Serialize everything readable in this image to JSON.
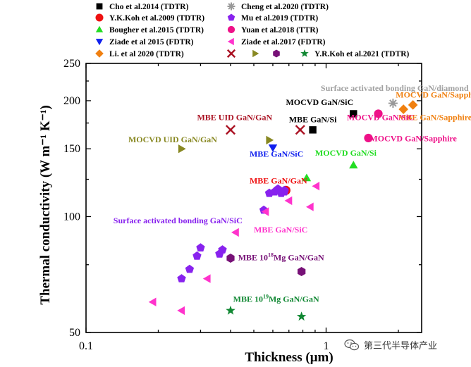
{
  "chart_data": {
    "type": "scatter",
    "xlabel": "Thickness (μm)",
    "ylabel": "Thermal conductivity (W m⁻¹ K⁻¹)",
    "xscale": "log",
    "yscale": "log",
    "xlim": [
      0.1,
      2.5
    ],
    "ylim": [
      50,
      250
    ],
    "x_ticks": [
      0.1,
      1
    ],
    "x_tick_labels": [
      "0.1",
      "1"
    ],
    "y_ticks": [
      50,
      100,
      150,
      200,
      250
    ],
    "y_tick_labels": [
      "50",
      "100",
      "150",
      "200",
      "250"
    ],
    "grid": false,
    "legend_position": "top",
    "legend": [
      {
        "label": "Cho et al.2014 (TDTR)",
        "marker": "square",
        "color": "#000000"
      },
      {
        "label": "Y.K.Koh et al.2009 (TDTR)",
        "marker": "circle",
        "color": "#ee1111"
      },
      {
        "label": "Bougher et al.2015 (TDTR)",
        "marker": "triangle-up",
        "color": "#22dd22"
      },
      {
        "label": "Ziade et al 2015 (FDTR)",
        "marker": "triangle-down",
        "color": "#1020ee"
      },
      {
        "label": "Li. et al 2020 (TDTR)",
        "marker": "diamond",
        "color": "#f08010"
      },
      {
        "label": "Cheng et al.2020 (TDTR)",
        "marker": "asterisk",
        "color": "#999999"
      },
      {
        "label": "Mu et al.2019 (TDTR)",
        "marker": "pentagon",
        "color": "#8822ee"
      },
      {
        "label": "Yuan et al.2018 (TTR)",
        "marker": "ball",
        "color": "#ee1188"
      },
      {
        "label": "Ziade et al.2017 (FDTR)",
        "marker": "triangle-left",
        "color": "#ff33cc"
      },
      {
        "label": "",
        "marker": "x",
        "color": "#aa1122"
      },
      {
        "label": "",
        "marker": "triangle-right",
        "color": "#888822"
      },
      {
        "label": "",
        "marker": "hexagon",
        "color": "#771177"
      },
      {
        "label": "Y.R.Koh et al.2021 (TDTR)",
        "marker": "star",
        "color": "#118833"
      }
    ],
    "series": [
      {
        "name": "Cho et al.2014 (TDTR)",
        "marker": "square",
        "color": "#000000",
        "x": [
          1.3,
          0.88
        ],
        "y": [
          185,
          168
        ]
      },
      {
        "name": "Y.K.Koh et al.2009 (TDTR)",
        "marker": "circle",
        "color": "#ee1111",
        "x": [
          0.68
        ],
        "y": [
          117
        ]
      },
      {
        "name": "Bougher et al.2015 (TDTR)",
        "marker": "triangle-up",
        "color": "#22dd22",
        "x": [
          0.83,
          1.3
        ],
        "y": [
          126,
          136
        ]
      },
      {
        "name": "Ziade et al 2015 (FDTR)",
        "marker": "triangle-down",
        "color": "#1020ee",
        "x": [
          0.6
        ],
        "y": [
          151
        ]
      },
      {
        "name": "Li. et al 2020 (TDTR)",
        "marker": "diamond",
        "color": "#f08010",
        "x": [
          2.1,
          2.3
        ],
        "y": [
          190,
          195
        ]
      },
      {
        "name": "Cheng et al.2020 (TDTR)",
        "marker": "asterisk",
        "color": "#999999",
        "x": [
          1.9
        ],
        "y": [
          197
        ]
      },
      {
        "name": "Mu et al.2019 (TDTR)",
        "marker": "pentagon",
        "color": "#8822ee",
        "x": [
          0.25,
          0.27,
          0.29,
          0.3,
          0.36,
          0.37,
          0.55,
          0.58,
          0.61,
          0.63,
          0.65,
          0.67,
          0.67
        ],
        "y": [
          69,
          73,
          79,
          83,
          80,
          82,
          104,
          115,
          116,
          118,
          115,
          117,
          116
        ]
      },
      {
        "name": "Yuan et al.2018 (TTR)",
        "marker": "ball",
        "color": "#ee1188",
        "x": [
          1.65,
          1.5
        ],
        "y": [
          185,
          160
        ]
      },
      {
        "name": "Ziade et al.2017 (FDTR)",
        "marker": "triangle-left",
        "color": "#ff33cc",
        "x": [
          0.19,
          0.25,
          0.32,
          0.42,
          0.56,
          0.7,
          0.86,
          0.91
        ],
        "y": [
          60,
          57,
          69,
          91,
          103,
          110,
          106,
          120
        ]
      },
      {
        "name": "",
        "marker": "x",
        "color": "#aa1122",
        "x": [
          0.4,
          0.78
        ],
        "y": [
          168,
          168
        ]
      },
      {
        "name": "",
        "marker": "triangle-right",
        "color": "#888822",
        "x": [
          0.25,
          0.58
        ],
        "y": [
          150,
          158
        ]
      },
      {
        "name": "",
        "marker": "hexagon",
        "color": "#771177",
        "x": [
          0.4,
          0.79
        ],
        "y": [
          78,
          72
        ]
      },
      {
        "name": "Y.R.Koh et al.2021 (TDTR)",
        "marker": "star",
        "color": "#118833",
        "x": [
          0.4,
          0.79
        ],
        "y": [
          57,
          55
        ]
      }
    ],
    "annotations": [
      {
        "text": "Surface activated bonding GaN/diamond",
        "color": "#a0a0a0",
        "x": 0.95,
        "y": 212
      },
      {
        "text": "MOCVD GaN/SiC",
        "color": "#000000",
        "x": 0.68,
        "y": 195
      },
      {
        "text": "MOCVD GaN/Sapphire",
        "color": "#f08010",
        "x": 1.95,
        "y": 204
      },
      {
        "text": "MBE GaN/Sapphire",
        "color": "#f08010",
        "x": 2.0,
        "y": 178
      },
      {
        "text": "MBE UID GaN/GaN",
        "color": "#aa1122",
        "x": 0.29,
        "y": 178
      },
      {
        "text": "MBE GaN/Si",
        "color": "#000000",
        "x": 0.7,
        "y": 176
      },
      {
        "text": "MOCVD GaN/SiC",
        "color": "#ee1188",
        "x": 1.22,
        "y": 178
      },
      {
        "text": "MOCVD UID GaN/GaN",
        "color": "#888822",
        "x": 0.15,
        "y": 156
      },
      {
        "text": "MOCVD GaN/Sapphire",
        "color": "#ee1188",
        "x": 1.52,
        "y": 157
      },
      {
        "text": "MBE GaN/SiC",
        "color": "#1020ee",
        "x": 0.48,
        "y": 143
      },
      {
        "text": "MOCVD GaN/Si",
        "color": "#22dd22",
        "x": 0.9,
        "y": 144
      },
      {
        "text": "MBE GaN/GaN",
        "color": "#ee1111",
        "x": 0.48,
        "y": 122
      },
      {
        "text": "Surface activated bonding GaN/SiC",
        "color": "#8822ee",
        "x": 0.13,
        "y": 96
      },
      {
        "text": "MBE GaN/SiC",
        "color": "#ff33cc",
        "x": 0.5,
        "y": 91
      },
      {
        "text": "MBE 10",
        "sup": "18",
        "rest": "Mg GaN/GaN",
        "color": "#771177",
        "x": 0.43,
        "y": 77
      },
      {
        "text": "MBE 10",
        "sup": "19",
        "rest": "Mg GaN/GaN",
        "color": "#118833",
        "x": 0.41,
        "y": 60
      }
    ]
  },
  "watermark": {
    "text": "第三代半导体产业",
    "icon": "wechat-icon"
  }
}
